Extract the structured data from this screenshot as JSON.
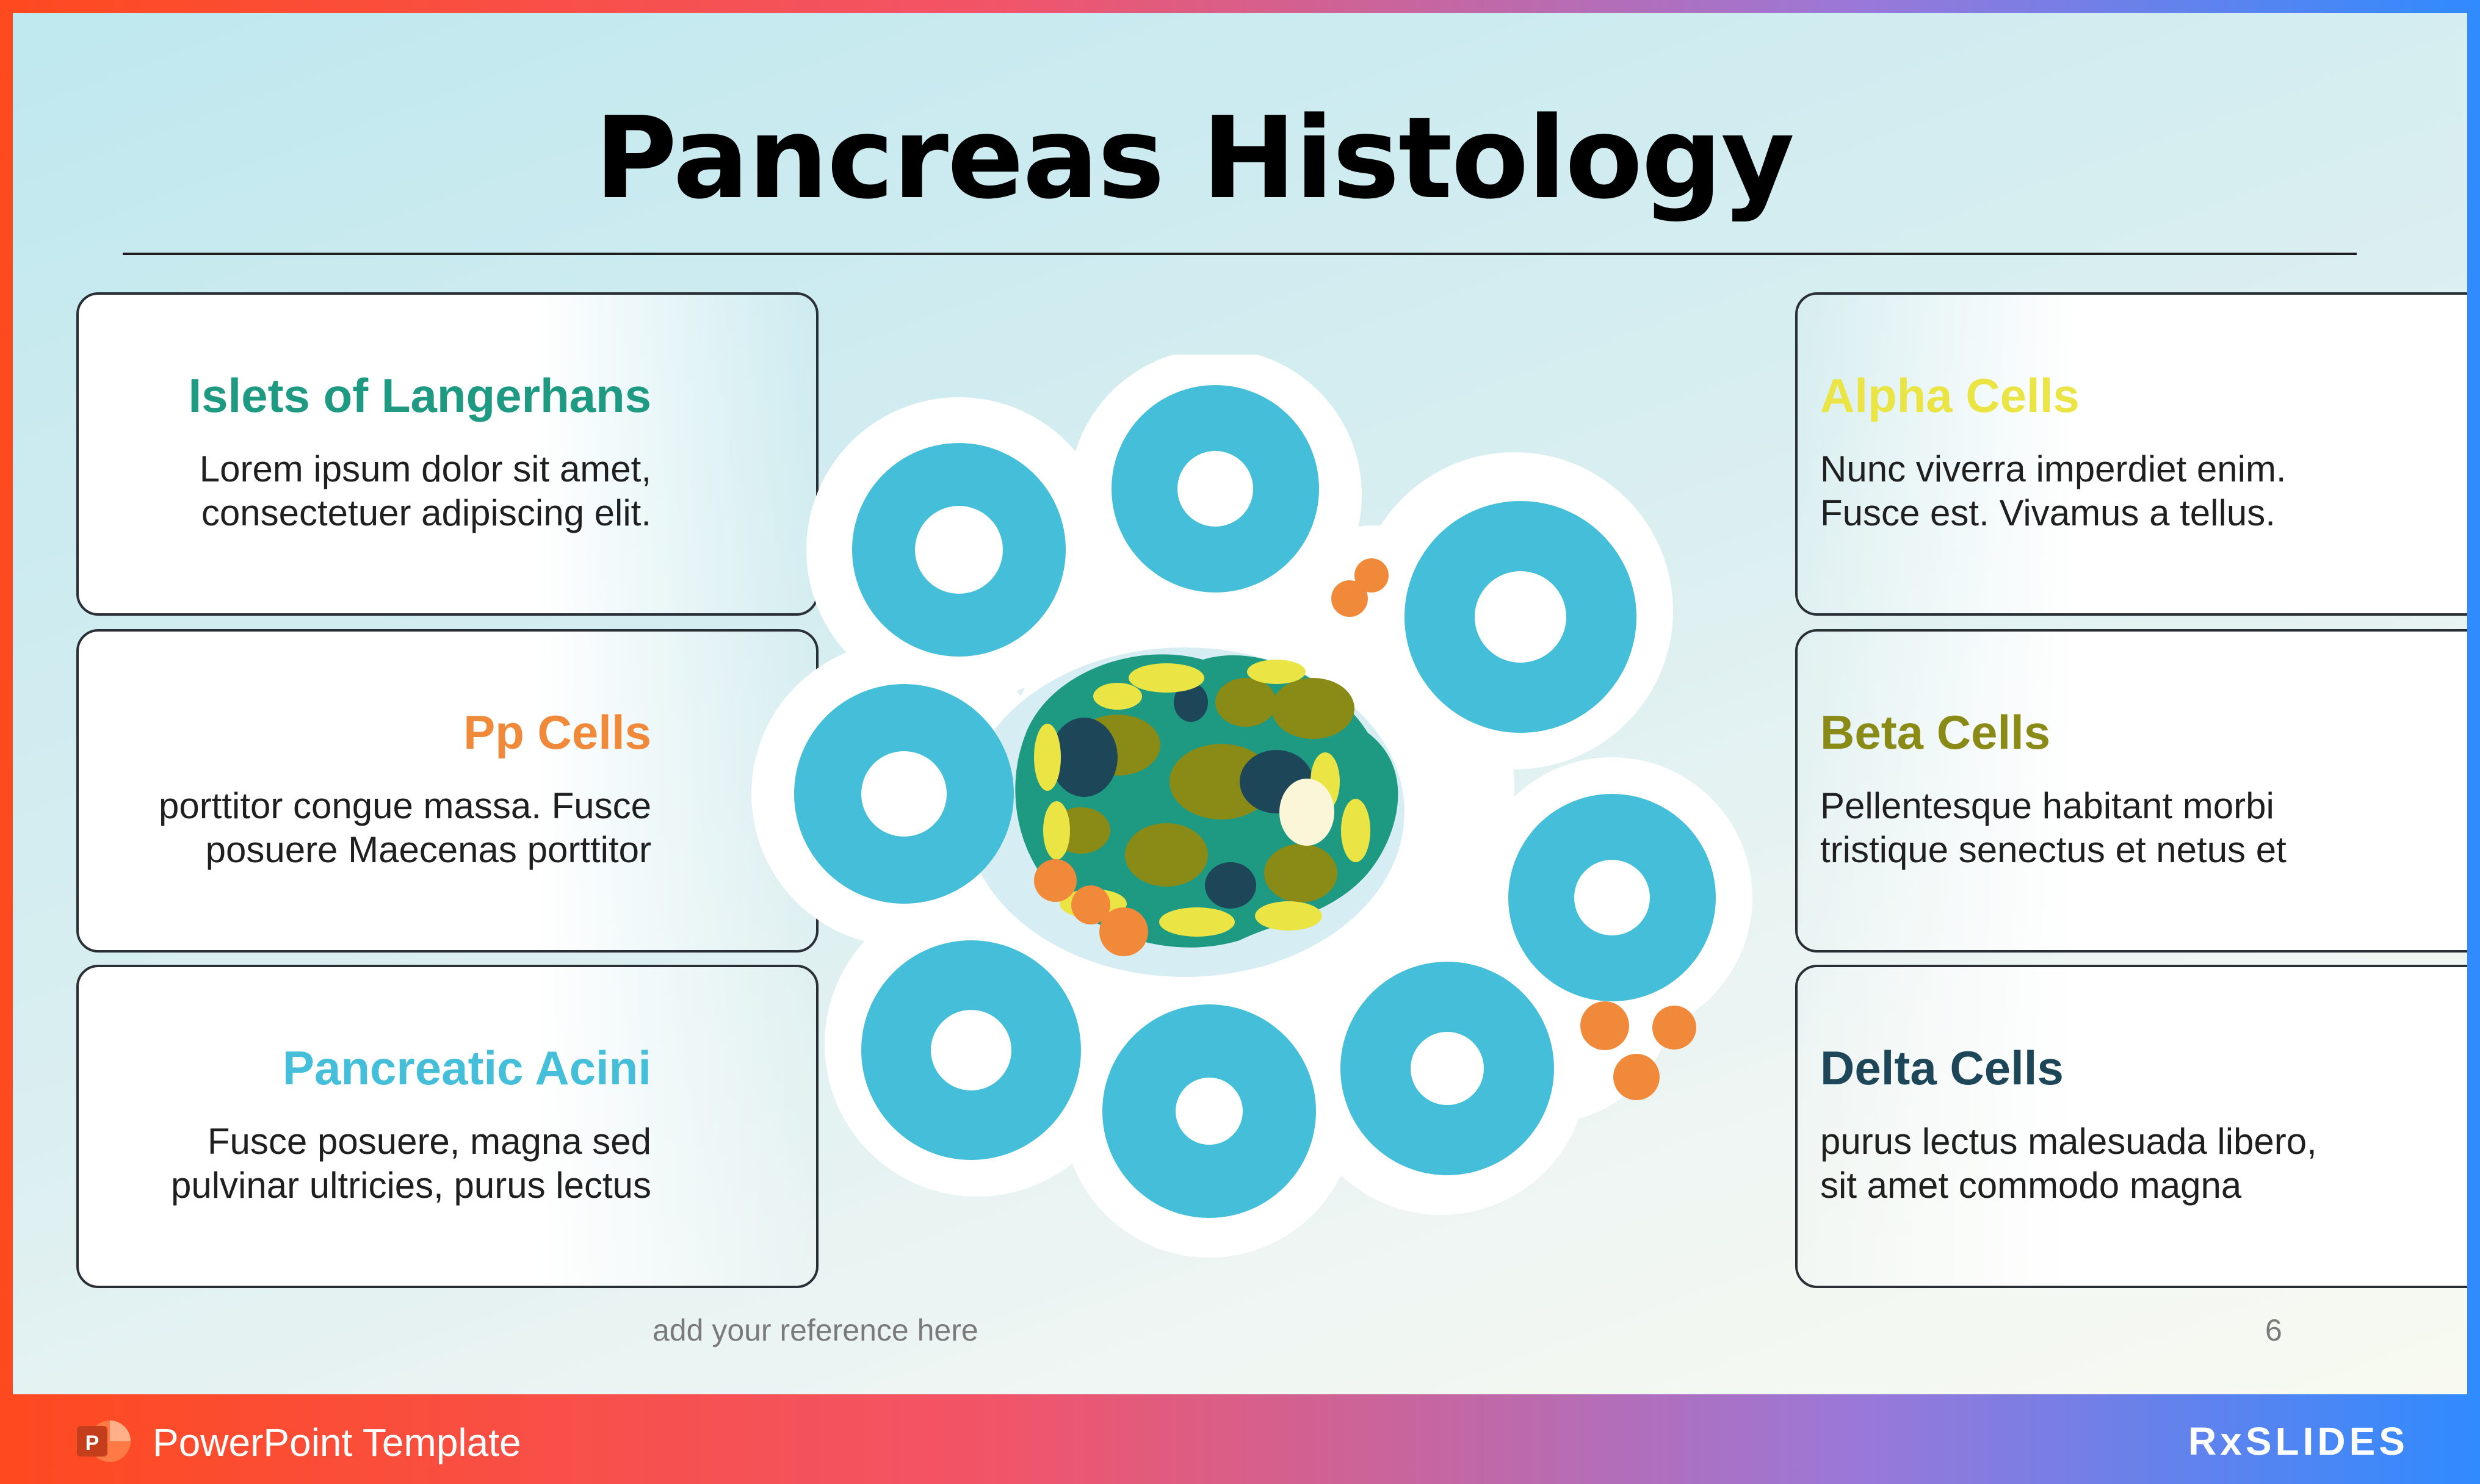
{
  "slide": {
    "title": "Pancreas Histology",
    "reference": "add your reference here",
    "page_number": "6"
  },
  "cards_left": [
    {
      "title": "Islets of Langerhans",
      "color": "#1e9a83",
      "line1": "Lorem ipsum dolor sit amet,",
      "line2": "consectetuer adipiscing elit."
    },
    {
      "title": "Pp Cells",
      "color": "#f08a3a",
      "line1": "porttitor congue massa. Fusce",
      "line2": "posuere Maecenas porttitor"
    },
    {
      "title": "Pancreatic Acini",
      "color": "#45bfd9",
      "line1": "Fusce posuere, magna sed",
      "line2": "pulvinar ultricies, purus lectus"
    }
  ],
  "cards_right": [
    {
      "title": "Alpha Cells",
      "color": "#eae444",
      "line1": "Nunc viverra imperdiet enim.",
      "line2": "Fusce est. Vivamus a tellus."
    },
    {
      "title": "Beta Cells",
      "color": "#8a8a16",
      "line1": "Pellentesque habitant morbi",
      "line2": "tristique senectus et netus et"
    },
    {
      "title": "Delta Cells",
      "color": "#1d4758",
      "line1": "purus lectus malesuada libero,",
      "line2": "sit amet commodo magna"
    }
  ],
  "footer": {
    "label": "PowerPoint Template",
    "brand": "RxSLIDES",
    "icon": "powerpoint-icon"
  },
  "colors": {
    "acini": "#45bfd9",
    "islet_rim": "#1e9a83",
    "alpha": "#eae444",
    "beta": "#8a8a16",
    "delta": "#1d4758",
    "pp": "#f08a3a"
  }
}
